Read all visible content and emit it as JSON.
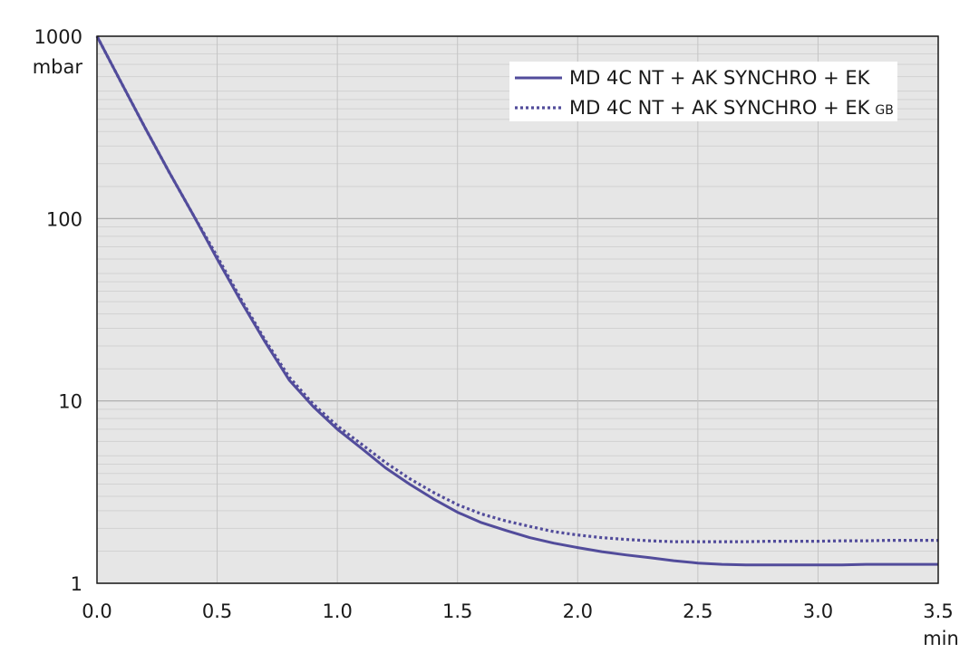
{
  "chart_data": {
    "type": "line",
    "title": "",
    "xlabel": "min",
    "ylabel": "mbar",
    "xlim": [
      0,
      3.5
    ],
    "ylim": [
      1,
      1000
    ],
    "y_scale": "log",
    "grid": true,
    "legend_position": "top-right",
    "x_ticks": [
      "0.0",
      "0.5",
      "1.0",
      "1.5",
      "2.0",
      "2.5",
      "3.0",
      "3.5"
    ],
    "y_ticks": [
      "1",
      "10",
      "100",
      "1000"
    ],
    "colors": {
      "plot_bg": "#e6e6e6",
      "series": "#524c9b",
      "grid": "#c4c4c4",
      "axis": "#1a1a1a"
    },
    "series": [
      {
        "name": "MD 4C NT + AK SYNCHRO + EK",
        "style": "solid",
        "x": [
          0.0,
          0.1,
          0.2,
          0.3,
          0.4,
          0.5,
          0.6,
          0.7,
          0.8,
          0.9,
          1.0,
          1.1,
          1.2,
          1.3,
          1.4,
          1.5,
          1.6,
          1.7,
          1.8,
          1.9,
          2.0,
          2.1,
          2.2,
          2.3,
          2.4,
          2.5,
          2.6,
          2.7,
          2.8,
          2.9,
          3.0,
          3.1,
          3.2,
          3.3,
          3.4,
          3.5
        ],
        "y": [
          1000,
          560,
          315,
          180,
          105,
          60,
          35,
          21,
          13,
          9.3,
          7.0,
          5.5,
          4.3,
          3.5,
          2.9,
          2.45,
          2.15,
          1.95,
          1.78,
          1.66,
          1.57,
          1.49,
          1.43,
          1.38,
          1.33,
          1.29,
          1.27,
          1.26,
          1.26,
          1.26,
          1.26,
          1.26,
          1.27,
          1.27,
          1.27,
          1.27
        ]
      },
      {
        "name": "MD 4C NT + AK SYNCHRO + EK",
        "name_subscript": "GB",
        "style": "dotted",
        "x": [
          0.0,
          0.1,
          0.2,
          0.3,
          0.4,
          0.5,
          0.6,
          0.7,
          0.8,
          0.9,
          1.0,
          1.1,
          1.2,
          1.3,
          1.4,
          1.5,
          1.6,
          1.7,
          1.8,
          1.9,
          2.0,
          2.1,
          2.2,
          2.3,
          2.4,
          2.5,
          2.6,
          2.7,
          2.8,
          2.9,
          3.0,
          3.1,
          3.2,
          3.3,
          3.4,
          3.5
        ],
        "y": [
          1000,
          560,
          315,
          180,
          105,
          62,
          36,
          21.5,
          13.5,
          9.6,
          7.3,
          5.8,
          4.6,
          3.75,
          3.15,
          2.7,
          2.4,
          2.2,
          2.05,
          1.92,
          1.84,
          1.78,
          1.74,
          1.71,
          1.69,
          1.69,
          1.69,
          1.69,
          1.7,
          1.7,
          1.7,
          1.71,
          1.71,
          1.72,
          1.72,
          1.72
        ]
      }
    ]
  }
}
